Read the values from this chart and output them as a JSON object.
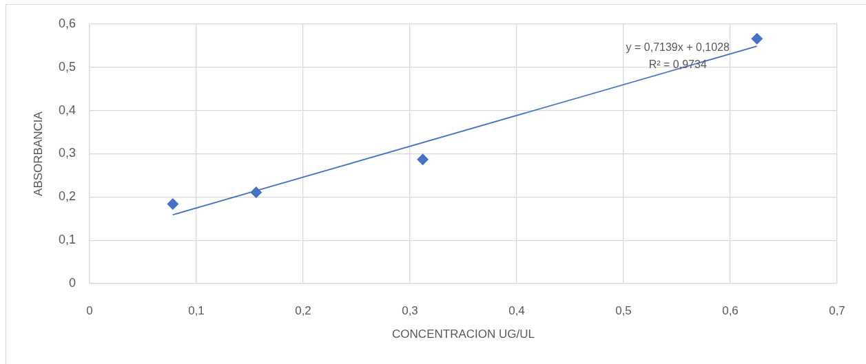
{
  "chart_data": {
    "type": "scatter",
    "xlabel": "CONCENTRACION UG/UL",
    "ylabel": "ABSORBANCIA",
    "x": [
      0.078,
      0.156,
      0.312,
      0.625
    ],
    "series": [
      {
        "color": "#4472c4",
        "values": [
          0.184,
          0.211,
          0.287,
          0.566
        ]
      },
      {
        "type": "line",
        "color": "#4472c4",
        "x": [
          0.078,
          0.625
        ],
        "values": [
          0.159,
          0.549
        ],
        "marker": "none"
      }
    ],
    "marker": "diamond",
    "xlim": [
      0,
      0.7
    ],
    "xticks": [
      0,
      {
        "value": 0.1,
        "label": "0,1"
      },
      {
        "value": 0.2,
        "label": "0,2"
      },
      {
        "value": 0.3,
        "label": "0,3"
      },
      {
        "value": 0.4,
        "label": "0,4"
      },
      {
        "value": 0.5,
        "label": "0,5"
      },
      {
        "value": 0.6,
        "label": "0,6"
      },
      {
        "value": 0.7,
        "label": "0,7"
      }
    ],
    "ylim": [
      0,
      0.6
    ],
    "yticks": [
      0,
      {
        "value": 0.1,
        "label": "0,1"
      },
      {
        "value": 0.2,
        "label": "0,2"
      },
      {
        "value": 0.3,
        "label": "0,3"
      },
      {
        "value": 0.4,
        "label": "0,4"
      },
      {
        "value": 0.5,
        "label": "0,5"
      },
      {
        "value": 0.6,
        "label": "0,6"
      }
    ],
    "grid": true,
    "legend": false,
    "annotations": [
      "y = 0,7139x + 0,1028",
      "R² = 0,9734"
    ]
  }
}
